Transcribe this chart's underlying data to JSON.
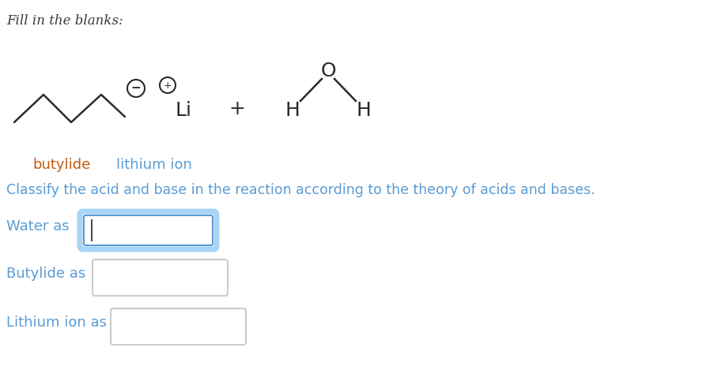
{
  "title": "Fill in the blanks:",
  "bg_color": "#ffffff",
  "classify_text": "Classify the acid and base in the reaction according to the theory of acids and bases.",
  "classify_color": "#5b9bd5",
  "label_butylide": "butylide",
  "label_lithium": "lithium ion",
  "label_butylide_color": "#c55a11",
  "label_lithium_color": "#5b9bd5",
  "water_label": "Water as",
  "butylide_label": "Butylide as",
  "lithium_label": "Lithium ion as",
  "input_label_color": "#5b9bd5",
  "box_active_color": "#5b9bd5",
  "fig_width": 8.98,
  "fig_height": 4.83,
  "dpi": 100
}
